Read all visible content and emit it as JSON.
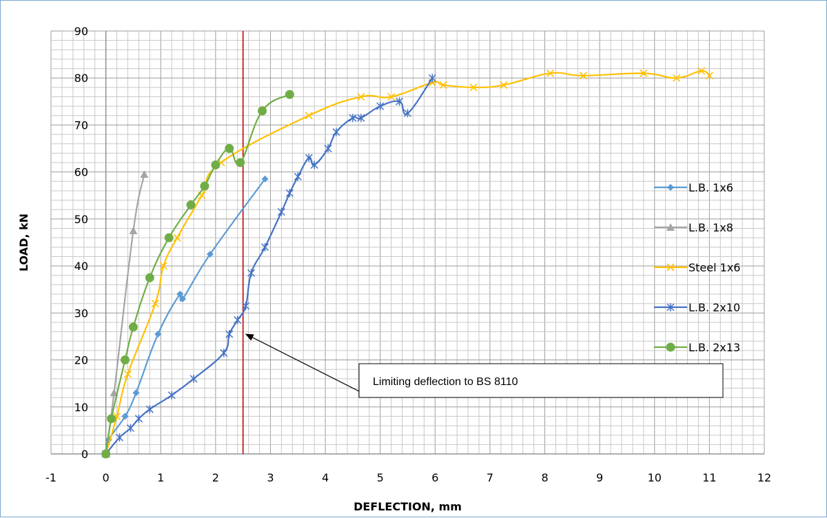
{
  "chart_data": {
    "type": "line",
    "title": "",
    "xlabel": "DEFLECTION,  mm",
    "ylabel": "LOAD, kN",
    "xlim": [
      -1,
      12
    ],
    "ylim": [
      0,
      90
    ],
    "xticks": [
      -1,
      0,
      1,
      2,
      3,
      4,
      5,
      6,
      7,
      8,
      9,
      10,
      11,
      12
    ],
    "yticks": [
      0,
      10,
      20,
      30,
      40,
      50,
      60,
      70,
      80,
      90
    ],
    "grid": true,
    "legend_position": "right",
    "series": [
      {
        "name": "L.B. 1x6",
        "color": "#5b9bd5",
        "marker": "diamond",
        "x": [
          0,
          0.05,
          0.35,
          0.55,
          0.95,
          1.35,
          1.4,
          1.9,
          2.9
        ],
        "y": [
          0,
          3,
          8,
          13,
          25.5,
          34,
          33,
          42.5,
          58.5
        ]
      },
      {
        "name": "L.B. 1x8",
        "color": "#a5a5a5",
        "marker": "triangle",
        "x": [
          0,
          0.15,
          0.5,
          0.7
        ],
        "y": [
          0,
          13,
          47.5,
          59.5
        ]
      },
      {
        "name": "Steel 1x6",
        "color": "#ffc000",
        "marker": "x",
        "x": [
          0,
          0.2,
          0.4,
          0.9,
          1.05,
          1.3,
          1.75,
          2.1,
          3.7,
          4.65,
          5.2,
          5.95,
          6.15,
          6.7,
          7.25,
          8.1,
          8.7,
          9.8,
          10.4,
          10.85,
          11.0
        ],
        "y": [
          0,
          8,
          17,
          32,
          40,
          46,
          55,
          62,
          72,
          76,
          76,
          79,
          78.5,
          78,
          78.5,
          81,
          80.5,
          81,
          80,
          81.5,
          80.5
        ]
      },
      {
        "name": "L.B. 2x10",
        "color": "#4472c4",
        "marker": "star",
        "x": [
          0,
          0.25,
          0.45,
          0.6,
          0.8,
          1.2,
          1.6,
          2.15,
          2.25,
          2.4,
          2.55,
          2.65,
          2.9,
          3.2,
          3.35,
          3.5,
          3.7,
          3.8,
          4.05,
          4.2,
          4.5,
          4.65,
          5.0,
          5.35,
          5.5,
          5.95
        ],
        "y": [
          0,
          3.5,
          5.5,
          7.5,
          9.5,
          12.5,
          16,
          21.5,
          25.5,
          28.5,
          31.5,
          38.5,
          44,
          51.5,
          55.5,
          59,
          63,
          61.5,
          65,
          68.5,
          71.5,
          71.5,
          74,
          75,
          72.5,
          80
        ]
      },
      {
        "name": "L.B. 2x13",
        "color": "#70ad47",
        "marker": "circle",
        "x": [
          0,
          0.1,
          0.35,
          0.5,
          0.8,
          1.15,
          1.55,
          1.8,
          2.0,
          2.25,
          2.45,
          2.85,
          3.35
        ],
        "y": [
          0,
          7.5,
          20,
          27,
          37.5,
          46,
          53,
          57,
          61.5,
          65,
          62,
          73,
          76.5
        ]
      }
    ],
    "reference_lines": [
      {
        "axis": "x",
        "value": 2.5,
        "color": "#c00000"
      }
    ],
    "annotations": [
      {
        "text": "Limiting deflection to BS 8110",
        "arrow_to": {
          "x": 2.5,
          "y": 25.5
        }
      }
    ]
  }
}
